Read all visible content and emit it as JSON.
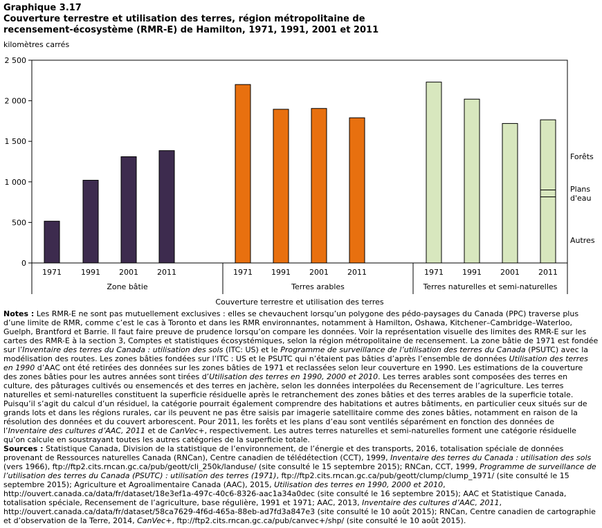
{
  "header": {
    "label": "Graphique  3.17",
    "title_line1": "Couverture terrestre et utilisation  des terres, région  métropolitaine  de",
    "title_line2": "recensement-écosystème (RMR-E)  de Hamilton, 1971, 1991, 2001 et 2011"
  },
  "chart_data": {
    "type": "bar",
    "title": "Couverture terrestre et utilisation des terres, région métropolitaine de recensement-écosystème (RMR-E) de Hamilton, 1971, 1991, 2001 et 2011",
    "ylabel": "kilomètres carrés",
    "xlabel": "Couverture terrestre et utilisation des terres",
    "ylim": [
      0,
      2500
    ],
    "yticks": [
      0,
      500,
      1000,
      1500,
      2000,
      2500
    ],
    "ytick_labels": [
      "0",
      "500",
      "1 000",
      "1 500",
      "2 000",
      "2 500"
    ],
    "groups": [
      {
        "name": "Zone bâtie",
        "color": "#3d2b4e",
        "categories": [
          "1971",
          "1991",
          "2001",
          "2011"
        ],
        "values": [
          515,
          1020,
          1310,
          1385
        ]
      },
      {
        "name": "Terres arables",
        "color": "#e8700f",
        "categories": [
          "1971",
          "1991",
          "2001",
          "2011"
        ],
        "values": [
          2200,
          1895,
          1905,
          1790
        ]
      },
      {
        "name": "Terres naturelles et semi-naturelles",
        "color": "#d8e7be",
        "categories": [
          "1971",
          "1991",
          "2001",
          "2011"
        ],
        "values": [
          2230,
          2020,
          1720,
          1765
        ]
      }
    ],
    "stack_2011_naturelles": {
      "components": [
        "Autres",
        "Plans d'eau",
        "Forêts"
      ],
      "values": [
        815,
        85,
        865
      ]
    },
    "annotations": [
      "Forêts",
      "Plans",
      "d'eau",
      "Autres"
    ]
  },
  "notes": {
    "label": "Notes :",
    "text": [
      " Les RMR-E ne sont pas mutuellement exclusives : elles se chevauchent lorsqu’un polygone des pédo-paysages du Canada (PPC) traverse plus d’une limite de RMR, comme c’est le cas à Toronto et dans les RMR environnantes, notamment à Hamilton, Oshawa, Kitchener–Cambridge–Waterloo, Guelph, Brantford et Barrie. Il faut faire preuve de prudence lorsqu’on compare les données. Voir la représentation visuelle des limites des RMR-E sur les cartes des RMR-E à la section 3, Comptes et statistiques écosystémiques, selon la région métropolitaine de recensement. La zone bâtie de 1971 est fondée sur l’",
      "Inventaire des terres du Canada : utilisation des sols",
      " (ITC: US) et le ",
      "Programme de surveillance de l’utilisation des terres du Canada",
      " (PSUTC) avec la modélisation des routes. Les zones bâties fondées sur l’ITC : US et le PSUTC qui n’étaient pas bâties d’après l’ensemble de données ",
      "Utilisation des terres en 1990",
      " d’AAC ont été retirées des données sur les zones bâties de 1971 et reclassées selon leur couverture en 1990. Les estimations de la couverture des zones bâties pour les autres années sont tirées d’",
      "Utilisation des terres en 1990, 2000 et 2010",
      ". Les terres arables sont composées des terres en culture, des pâturages cultivés ou ensemencés et des terres en jachère, selon les données interpolées du Recensement de l’agriculture. Les terres naturelles et semi-naturelles constituent la superficie résiduelle après le retranchement des zones bâties et des terres arables de la superficie totale. Puisqu’il s’agit du calcul d’un résiduel, la catégorie pourrait également comprendre des habitations et autres bâtiments, en particulier ceux situés sur de grands lots et dans les régions rurales, car ils peuvent ne pas être saisis par imagerie satellitaire comme des zones bâties, notamment en raison de la résolution des données et du couvert arborescent. Pour 2011, les forêts et les plans d’eau sont ventilés séparément en fonction des données de l’",
      "Inventaire des cultures d’AAC, 2011",
      " et de ",
      "CanVec+",
      ", respectivement. Les autres terres naturelles et semi-naturelles forment une catégorie résiduelle qu’on calcule en soustrayant toutes les autres catégories de la superficie totale."
    ]
  },
  "sources": {
    "label": "Sources :",
    "text": [
      " Statistique Canada, Division de la statistique de l’environnement, de l’énergie et des transports, 2016, totalisation spéciale de données provenant de Ressources naturelles Canada (RNCan), Centre canadien de télédétection (CCT), 1999, ",
      "Inventaire des terres du Canada : utilisation des sols",
      " (vers 1966), ftp://ftp2.cits.rncan.gc.ca/pub/geott/cli_250k/landuse/ (site consulté le 15 septembre 2015); RNCan, CCT, 1999, ",
      "Programme de surveillance de l’utilisation des terres du Canada (PSUTC) : utilisation des terres (1971)",
      ", ftp://ftp2.cits.rncan.gc.ca/pub/geott/clump/clump_1971/ (site consulté le 15 septembre 2015); Agriculture et Agroalimentaire Canada (AAC), 2015, ",
      "Utilisation des terres en 1990, 2000 et 2010",
      ", http://ouvert.canada.ca/data/fr/dataset/18e3ef1a-497c-40c6-8326-aac1a34a0dec (site consulté le 16 septembre 2015); AAC et Statistique Canada, totalisation spéciale, Recensement de l’agriculture, base régulière, 1991 et 1971; AAC, 2013, ",
      "Inventaire des cultures d’AAC, 2011",
      ", http://ouvert.canada.ca/data/fr/dataset/58ca7629-4f6d-465a-88eb-ad7fd3a847e3 (site consulté le 10 août 2015); RNCan, Centre canadien de cartographie et d’observation de la Terre, 2014, ",
      "CanVec+",
      ", ftp://ftp2.cits.rncan.gc.ca/pub/canvec+/shp/ (site consulté le 10 août 2015)."
    ]
  }
}
